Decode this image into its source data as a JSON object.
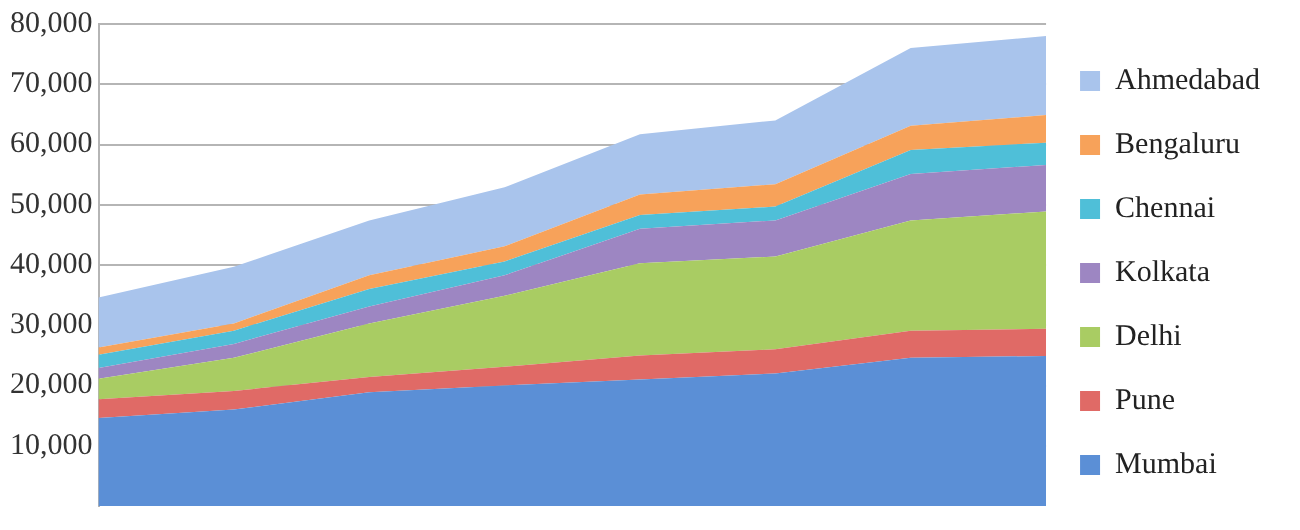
{
  "chart_data": {
    "type": "area",
    "stacked": true,
    "categories": [
      null,
      null,
      null,
      null,
      null,
      null,
      null,
      null
    ],
    "ylim": [
      0,
      80000
    ],
    "yticks": [
      {
        "value": 10000,
        "label": "10,000"
      },
      {
        "value": 20000,
        "label": "20,000"
      },
      {
        "value": 30000,
        "label": "30,000"
      },
      {
        "value": 40000,
        "label": "40,000"
      },
      {
        "value": 50000,
        "label": "50,000"
      },
      {
        "value": 60000,
        "label": "60,000"
      },
      {
        "value": 70000,
        "label": "70,000"
      },
      {
        "value": 80000,
        "label": "80,000"
      }
    ],
    "grid": "y",
    "legend": "right",
    "tick_labels": "y",
    "series": [
      {
        "name": "Mumbai",
        "color": "#5b8fd6",
        "values": [
          14600,
          16000,
          18900,
          20000,
          21000,
          22000,
          24600,
          24900
        ]
      },
      {
        "name": "Pune",
        "color": "#e06a66",
        "values": [
          3100,
          3100,
          2500,
          3100,
          4000,
          4000,
          4500,
          4500
        ]
      },
      {
        "name": "Delhi",
        "color": "#a9cc63",
        "values": [
          3400,
          5500,
          8900,
          11800,
          15300,
          15400,
          18300,
          19500
        ]
      },
      {
        "name": "Kolkata",
        "color": "#9d86c2",
        "values": [
          1800,
          2300,
          2800,
          3400,
          5700,
          6000,
          7700,
          7700
        ]
      },
      {
        "name": "Chennai",
        "color": "#4fbfd8",
        "values": [
          2200,
          2200,
          2900,
          2300,
          2300,
          2300,
          4000,
          3700
        ]
      },
      {
        "name": "Bengaluru",
        "color": "#f7a25a",
        "values": [
          1200,
          1200,
          2300,
          2500,
          3400,
          3700,
          4000,
          4600
        ]
      },
      {
        "name": "Ahmedabad",
        "color": "#a9c4ec",
        "values": [
          8300,
          9400,
          9100,
          9800,
          10000,
          10600,
          12900,
          13100
        ]
      }
    ]
  }
}
